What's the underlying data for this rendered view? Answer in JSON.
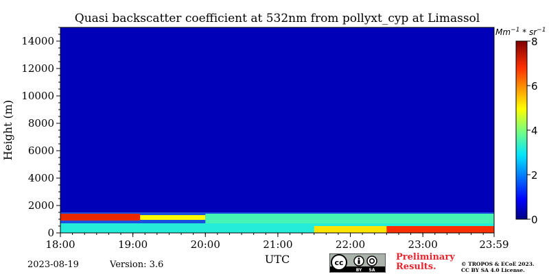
{
  "chart_data": {
    "type": "heatmap",
    "title": "Quasi backscatter coefficient at 532nm from pollyxt_cyp at Limassol",
    "xlabel": "UTC",
    "ylabel": "Height (m)",
    "x_ticks": [
      "18:00",
      "19:00",
      "20:00",
      "21:00",
      "22:00",
      "23:00",
      "23:59"
    ],
    "x_range_hours": [
      18.0,
      23.983
    ],
    "y_ticks": [
      0,
      2000,
      4000,
      6000,
      8000,
      10000,
      12000,
      14000
    ],
    "y_range_m": [
      0,
      15000
    ],
    "colorbar": {
      "label": "Mm^-1 * sr^-1",
      "label_base": "Mm",
      "label_exp1": "−1",
      "label_mid": " * sr",
      "label_exp2": "−1",
      "ticks": [
        0,
        2,
        4,
        6,
        8
      ],
      "range": [
        0,
        8
      ],
      "colormap": "jet"
    },
    "layers": [
      {
        "name": "background free troposphere",
        "height_range_m": [
          1500,
          15000
        ],
        "value": 0.4
      },
      {
        "name": "boundary layer top (elevated aerosol)",
        "time_range_h": [
          18.0,
          19.1
        ],
        "height_range_m": [
          900,
          1400
        ],
        "value": 7.0
      },
      {
        "name": "boundary layer top (elevated aerosol)",
        "time_range_h": [
          19.1,
          20.0
        ],
        "height_range_m": [
          950,
          1300
        ],
        "value": 5.0
      },
      {
        "name": "residual layer",
        "time_range_h": [
          20.0,
          23.983
        ],
        "height_range_m": [
          700,
          1400
        ],
        "value": 3.5
      },
      {
        "name": "near-surface layer",
        "time_range_h": [
          18.0,
          23.983
        ],
        "height_range_m": [
          0,
          700
        ],
        "value": 3.2
      },
      {
        "name": "near-surface enhancement",
        "time_range_h": [
          21.5,
          23.983
        ],
        "height_range_m": [
          0,
          500
        ],
        "value": 5.2
      },
      {
        "name": "near-surface strong",
        "time_range_h": [
          22.5,
          23.983
        ],
        "height_range_m": [
          0,
          500
        ],
        "value": 6.8
      }
    ]
  },
  "footer": {
    "date": "2023-08-19",
    "version": "Version: 3.6",
    "preliminary_line1": "Preliminary",
    "preliminary_line2": "Results.",
    "copyright_line1": "© TROPOS & ECoE 2023.",
    "copyright_line2": "CC BY SA 4.0 License.",
    "license_badge": {
      "main": "cc",
      "by": "BY",
      "sa": "SA"
    }
  },
  "colors": {
    "background": "#1a50e0",
    "colormap_jet": [
      "#00007f",
      "#0000ff",
      "#007fff",
      "#00ffff",
      "#7fff7f",
      "#ffff00",
      "#ff7f00",
      "#ff0000",
      "#7f0000"
    ],
    "preliminary_text": "#e8242c"
  }
}
